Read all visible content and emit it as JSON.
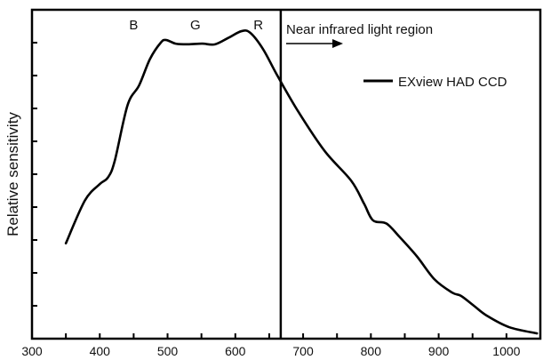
{
  "chart_data": {
    "type": "line",
    "title": "",
    "xlabel": "",
    "ylabel": "Relative sensitivity",
    "xlim": [
      300,
      1050
    ],
    "ylim": [
      0,
      1
    ],
    "xticks_major": [
      300,
      400,
      500,
      600,
      700,
      800,
      900,
      1000
    ],
    "xticks_minor": [
      350,
      450,
      550,
      650,
      750,
      850,
      950
    ],
    "yticks": [
      0.1,
      0.2,
      0.3,
      0.4,
      0.5,
      0.6,
      0.7,
      0.8,
      0.9
    ],
    "show_ytick_labels": false,
    "grid": false,
    "legend": {
      "placement": "top-right",
      "entries": [
        "EXview HAD CCD"
      ]
    },
    "series": [
      {
        "name": "EXview HAD CCD",
        "color": "#000000",
        "x": [
          350,
          378,
          400,
          412,
          422,
          441,
          458,
          474,
          490,
          498,
          512,
          530,
          551,
          570,
          590,
          609,
          622,
          641,
          662,
          693,
          732,
          771,
          790,
          803,
          823,
          842,
          868,
          894,
          920,
          933,
          952,
          971,
          1004,
          1045
        ],
        "y": [
          0.29,
          0.42,
          0.47,
          0.49,
          0.54,
          0.71,
          0.77,
          0.85,
          0.9,
          0.908,
          0.897,
          0.895,
          0.897,
          0.895,
          0.915,
          0.935,
          0.93,
          0.88,
          0.8,
          0.69,
          0.57,
          0.48,
          0.41,
          0.36,
          0.35,
          0.31,
          0.25,
          0.18,
          0.14,
          0.13,
          0.1,
          0.07,
          0.035,
          0.016
        ]
      }
    ],
    "annotations": {
      "band_labels": [
        {
          "text": "B",
          "x": 450
        },
        {
          "text": "G",
          "x": 541
        },
        {
          "text": "R",
          "x": 634
        }
      ],
      "vline_x": 667,
      "region_label": "Near infrared light region"
    }
  }
}
